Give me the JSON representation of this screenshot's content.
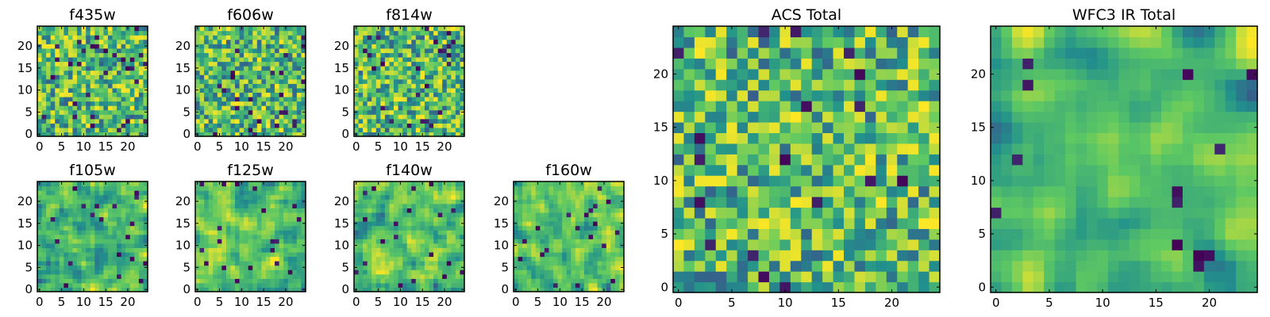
{
  "chart_data": [
    {
      "id": "f435w",
      "type": "heatmap",
      "title": "f435w",
      "xlim": [
        0,
        24
      ],
      "ylim": [
        0,
        24
      ],
      "xticks": [
        0,
        5,
        10,
        15,
        20
      ],
      "yticks": [
        0,
        5,
        10,
        15,
        20
      ],
      "grid": 25,
      "smooth": 0,
      "seed": 11,
      "low_fraction": 0.05,
      "xlabel": "",
      "ylabel": ""
    },
    {
      "id": "f606w",
      "type": "heatmap",
      "title": "f606w",
      "xlim": [
        0,
        24
      ],
      "ylim": [
        0,
        24
      ],
      "xticks": [
        0,
        5,
        10,
        15,
        20
      ],
      "yticks": [
        0,
        5,
        10,
        15,
        20
      ],
      "grid": 25,
      "smooth": 0,
      "seed": 23,
      "low_fraction": 0.04,
      "xlabel": "",
      "ylabel": ""
    },
    {
      "id": "f814w",
      "type": "heatmap",
      "title": "f814w",
      "xlim": [
        0,
        24
      ],
      "ylim": [
        0,
        24
      ],
      "xticks": [
        0,
        5,
        10,
        15,
        20
      ],
      "yticks": [
        0,
        5,
        10,
        15,
        20
      ],
      "grid": 25,
      "smooth": 0,
      "seed": 37,
      "low_fraction": 0.04,
      "xlabel": "",
      "ylabel": ""
    },
    {
      "id": "f105w",
      "type": "heatmap",
      "title": "f105w",
      "xlim": [
        0,
        24
      ],
      "ylim": [
        0,
        24
      ],
      "xticks": [
        0,
        5,
        10,
        15,
        20
      ],
      "yticks": [
        0,
        5,
        10,
        15,
        20
      ],
      "grid": 25,
      "smooth": 1,
      "seed": 41,
      "low_fraction": 0.03,
      "xlabel": "",
      "ylabel": ""
    },
    {
      "id": "f125w",
      "type": "heatmap",
      "title": "f125w",
      "xlim": [
        0,
        24
      ],
      "ylim": [
        0,
        24
      ],
      "xticks": [
        0,
        5,
        10,
        15,
        20
      ],
      "yticks": [
        0,
        5,
        10,
        15,
        20
      ],
      "grid": 25,
      "smooth": 1,
      "seed": 53,
      "low_fraction": 0.03,
      "xlabel": "",
      "ylabel": ""
    },
    {
      "id": "f140w",
      "type": "heatmap",
      "title": "f140w",
      "xlim": [
        0,
        24
      ],
      "ylim": [
        0,
        24
      ],
      "xticks": [
        0,
        5,
        10,
        15,
        20
      ],
      "yticks": [
        0,
        5,
        10,
        15,
        20
      ],
      "grid": 25,
      "smooth": 1,
      "seed": 67,
      "low_fraction": 0.03,
      "xlabel": "",
      "ylabel": ""
    },
    {
      "id": "f160w",
      "type": "heatmap",
      "title": "f160w",
      "xlim": [
        0,
        24
      ],
      "ylim": [
        0,
        24
      ],
      "xticks": [
        0,
        5,
        10,
        15,
        20
      ],
      "yticks": [
        0,
        5,
        10,
        15,
        20
      ],
      "grid": 25,
      "smooth": 1,
      "seed": 79,
      "low_fraction": 0.03,
      "xlabel": "",
      "ylabel": ""
    },
    {
      "id": "acs-total",
      "type": "heatmap",
      "title": "ACS Total",
      "xlim": [
        0,
        24
      ],
      "ylim": [
        0,
        24
      ],
      "xticks": [
        0,
        5,
        10,
        15,
        20
      ],
      "yticks": [
        0,
        5,
        10,
        15,
        20
      ],
      "grid": 25,
      "smooth": 0,
      "seed": 97,
      "low_fraction": 0.03,
      "xlabel": "",
      "ylabel": ""
    },
    {
      "id": "wfc3-ir-total",
      "type": "heatmap",
      "title": "WFC3 IR Total",
      "xlim": [
        0,
        24
      ],
      "ylim": [
        0,
        24
      ],
      "xticks": [
        0,
        5,
        10,
        15,
        20
      ],
      "yticks": [
        0,
        5,
        10,
        15,
        20
      ],
      "grid": 25,
      "smooth": 2,
      "seed": 113,
      "low_fraction": 0.02,
      "xlabel": "",
      "ylabel": ""
    }
  ],
  "colormap": {
    "name": "viridis",
    "stops": [
      "#440154",
      "#3b528b",
      "#21918c",
      "#5ec962",
      "#fde725"
    ]
  },
  "axis_color": "#000000"
}
